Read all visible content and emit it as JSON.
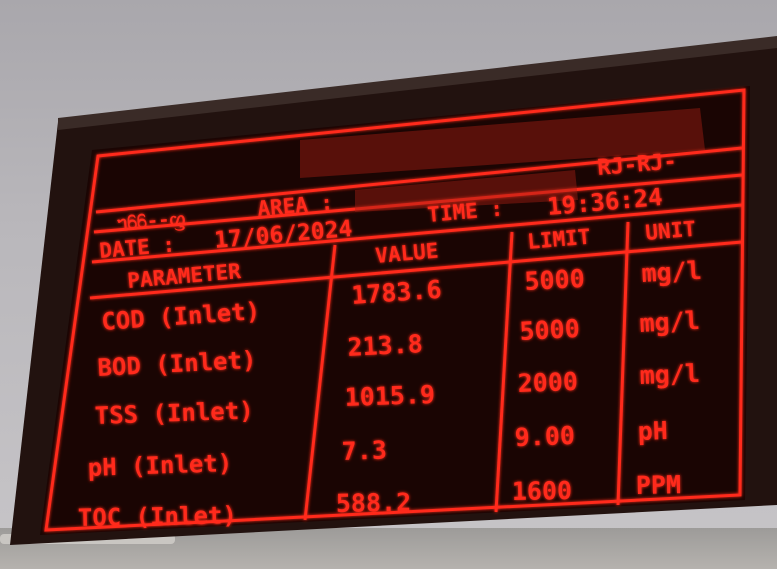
{
  "board": {
    "header_text": "",
    "area_label": "AREA :",
    "area_code": "RJ-RJ-",
    "time_label": "TIME :",
    "time_value": "19:36:24",
    "date_label": "DATE :",
    "date_value": "17/06/2024"
  },
  "table": {
    "headers": [
      "PARAMETER",
      "VALUE",
      "LIMIT",
      "UNIT"
    ],
    "rows": [
      {
        "parameter": "COD (Inlet)",
        "value": "1783.6",
        "limit": "5000",
        "unit": "mg/l"
      },
      {
        "parameter": "BOD (Inlet)",
        "value": "213.8",
        "limit": "5000",
        "unit": "mg/l"
      },
      {
        "parameter": "TSS (Inlet)",
        "value": "1015.9",
        "limit": "2000",
        "unit": "mg/l"
      },
      {
        "parameter": "pH (Inlet)",
        "value": "7.3",
        "limit": "9.00",
        "unit": "pH"
      },
      {
        "parameter": "TOC (Inlet)",
        "value": "588.2",
        "limit": "1600",
        "unit": "PPM"
      }
    ]
  },
  "colors": {
    "led": "#ff2a1a",
    "board": "#1a0503",
    "sky": "#b9b7bb"
  }
}
